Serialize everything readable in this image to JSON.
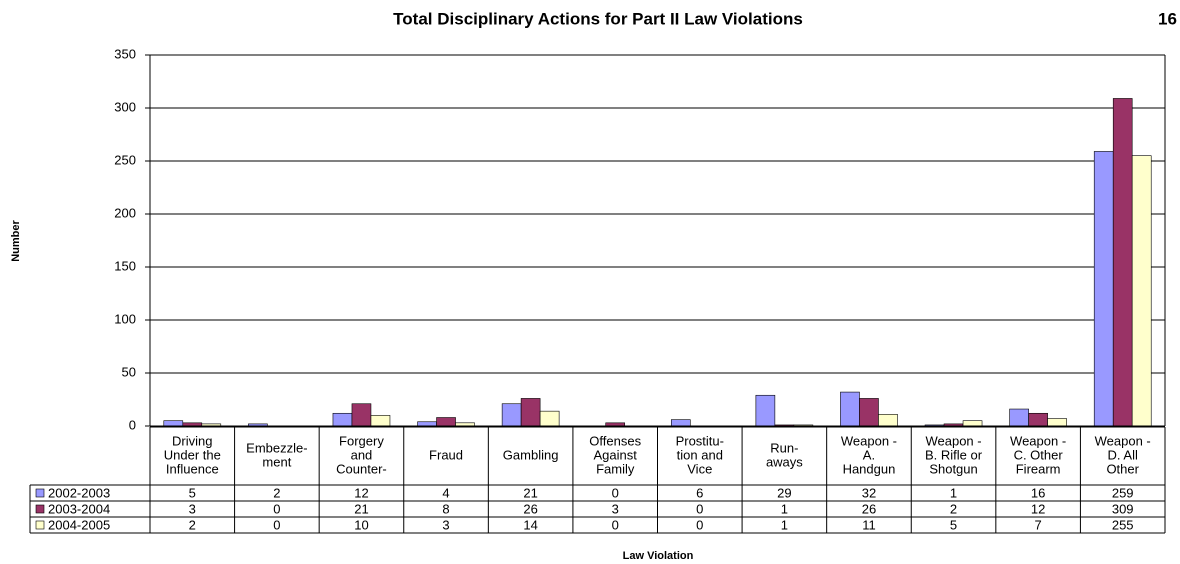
{
  "chart_data": {
    "type": "bar",
    "title": "Total Disciplinary Actions for Part II Law Violations",
    "page_number": "16",
    "y_label": "Number",
    "x_label": "Law Violation",
    "categories": [
      [
        "Driving",
        "Under the",
        "Influence"
      ],
      [
        "Embezzle-",
        "ment"
      ],
      [
        "Forgery",
        "and",
        "Counter-"
      ],
      [
        "Fraud"
      ],
      [
        "Gambling"
      ],
      [
        "Offenses",
        "Against",
        "Family"
      ],
      [
        "Prostitu-",
        "tion and",
        "Vice"
      ],
      [
        "Run-",
        "aways"
      ],
      [
        "Weapon -",
        "A.",
        "Handgun"
      ],
      [
        "Weapon -",
        "B. Rifle or",
        "Shotgun"
      ],
      [
        "Weapon -",
        "C. Other",
        "Firearm"
      ],
      [
        "Weapon -",
        "D. All",
        "Other"
      ]
    ],
    "series": [
      {
        "name": "2002-2003",
        "color": "#9999ff",
        "values": [
          5,
          2,
          12,
          4,
          21,
          0,
          6,
          29,
          32,
          1,
          16,
          259
        ]
      },
      {
        "name": "2003-2004",
        "color": "#993366",
        "values": [
          3,
          0,
          21,
          8,
          26,
          3,
          0,
          1,
          26,
          2,
          12,
          309
        ]
      },
      {
        "name": "2004-2005",
        "color": "#ffffcc",
        "values": [
          2,
          0,
          10,
          3,
          14,
          0,
          0,
          1,
          11,
          5,
          7,
          255
        ]
      }
    ],
    "ylim": [
      0,
      350
    ],
    "yticks": [
      0,
      50,
      100,
      150,
      200,
      250,
      300,
      350
    ],
    "grid": true
  }
}
